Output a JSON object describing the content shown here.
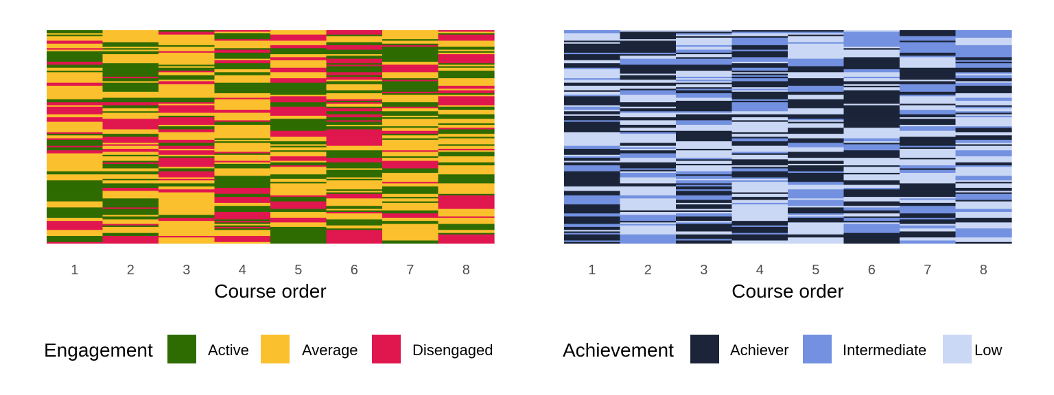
{
  "chart_data": [
    {
      "type": "heatmap",
      "title": "",
      "xlabel": "Course order",
      "ylabel": "",
      "categories": [
        "1",
        "2",
        "3",
        "4",
        "5",
        "6",
        "7",
        "8"
      ],
      "legend": {
        "title": "Engagement",
        "placement": "bottom",
        "items": [
          {
            "label": "Active",
            "color": "#2E6B00"
          },
          {
            "label": "Average",
            "color": "#FBC02D"
          },
          {
            "label": "Disengaged",
            "color": "#E0174F"
          }
        ]
      },
      "grid": false,
      "rows_per_column": 142,
      "proportions": [
        {
          "course": "1",
          "Active": 0.35,
          "Average": 0.45,
          "Disengaged": 0.2
        },
        {
          "course": "2",
          "Active": 0.38,
          "Average": 0.4,
          "Disengaged": 0.22
        },
        {
          "course": "3",
          "Active": 0.25,
          "Average": 0.5,
          "Disengaged": 0.25
        },
        {
          "course": "4",
          "Active": 0.3,
          "Average": 0.45,
          "Disengaged": 0.25
        },
        {
          "course": "5",
          "Active": 0.28,
          "Average": 0.42,
          "Disengaged": 0.3
        },
        {
          "course": "6",
          "Active": 0.35,
          "Average": 0.35,
          "Disengaged": 0.3
        },
        {
          "course": "7",
          "Active": 0.38,
          "Average": 0.35,
          "Disengaged": 0.27
        },
        {
          "course": "8",
          "Active": 0.32,
          "Average": 0.4,
          "Disengaged": 0.28
        }
      ]
    },
    {
      "type": "heatmap",
      "title": "",
      "xlabel": "Course order",
      "ylabel": "",
      "categories": [
        "1",
        "2",
        "3",
        "4",
        "5",
        "6",
        "7",
        "8"
      ],
      "legend": {
        "title": "Achievement",
        "placement": "bottom",
        "items": [
          {
            "label": "Achiever",
            "color": "#1B2438"
          },
          {
            "label": "Intermediate",
            "color": "#7391E0"
          },
          {
            "label": "Low",
            "color": "#CBD8F5"
          }
        ]
      },
      "grid": false,
      "rows_per_column": 142,
      "proportions": [
        {
          "course": "1",
          "Achiever": 0.45,
          "Intermediate": 0.25,
          "Low": 0.3
        },
        {
          "course": "2",
          "Achiever": 0.4,
          "Intermediate": 0.25,
          "Low": 0.35
        },
        {
          "course": "3",
          "Achiever": 0.45,
          "Intermediate": 0.2,
          "Low": 0.35
        },
        {
          "course": "4",
          "Achiever": 0.45,
          "Intermediate": 0.3,
          "Low": 0.25
        },
        {
          "course": "5",
          "Achiever": 0.4,
          "Intermediate": 0.2,
          "Low": 0.4
        },
        {
          "course": "6",
          "Achiever": 0.45,
          "Intermediate": 0.2,
          "Low": 0.35
        },
        {
          "course": "7",
          "Achiever": 0.4,
          "Intermediate": 0.35,
          "Low": 0.25
        },
        {
          "course": "8",
          "Achiever": 0.45,
          "Intermediate": 0.3,
          "Low": 0.25
        }
      ]
    }
  ]
}
